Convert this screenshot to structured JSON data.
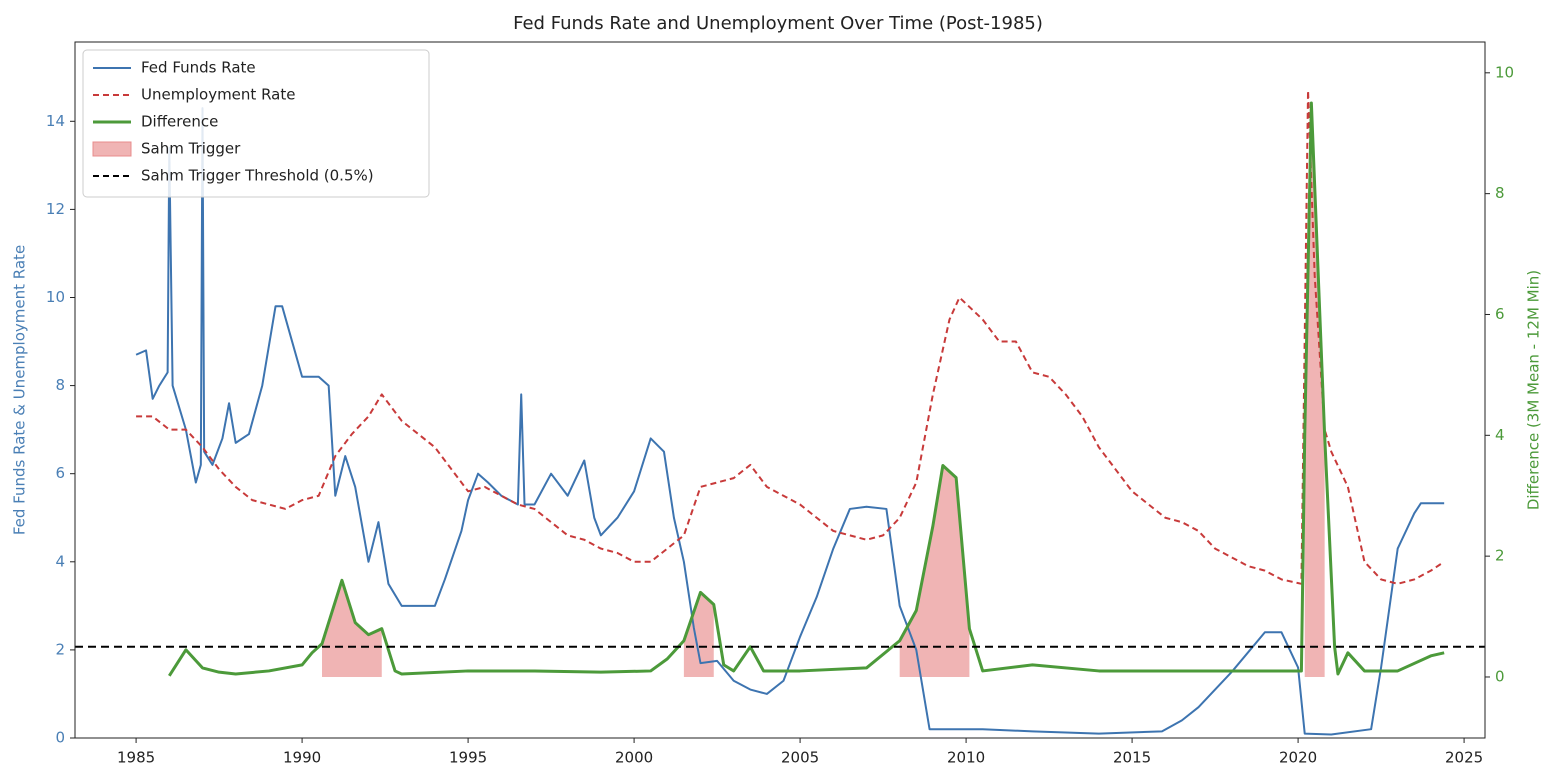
{
  "chart_data": {
    "type": "line",
    "title": "Fed Funds Rate and Unemployment Over Time (Post-1985)",
    "ylabel": "Fed Funds Rate & Unemployment Rate",
    "y2label": "Difference (3M Mean - 12M Min)",
    "xlim": [
      1983.16,
      2025.63
    ],
    "xticks": [
      1985,
      1990,
      1995,
      2000,
      2005,
      2010,
      2015,
      2020,
      2025
    ],
    "ylim": [
      0,
      15.8
    ],
    "yticks": [
      0,
      2,
      4,
      6,
      8,
      10,
      12,
      14
    ],
    "y2lim": [
      -1.01,
      10.51
    ],
    "y2ticks": [
      0,
      2,
      4,
      6,
      8,
      10
    ],
    "ylabel_color": "#4a7fb5",
    "y2label_color": "#4c9a3a",
    "legend": "upper left",
    "series": [
      {
        "name": "Fed Funds Rate",
        "color": "#3d74b0",
        "style": "solid",
        "width": 2,
        "axis": "y",
        "x": [
          1985.0,
          1985.3,
          1985.5,
          1985.7,
          1985.95,
          1986.0,
          1986.1,
          1986.5,
          1986.8,
          1986.95,
          1987.0,
          1987.05,
          1987.3,
          1987.6,
          1987.8,
          1988.0,
          1988.4,
          1988.8,
          1989.2,
          1989.4,
          1989.7,
          1990.0,
          1990.5,
          1990.8,
          1991.0,
          1991.3,
          1991.6,
          1992.0,
          1992.3,
          1992.6,
          1993.0,
          1993.5,
          1994.0,
          1994.3,
          1994.8,
          1995.0,
          1995.3,
          1995.6,
          1996.0,
          1996.5,
          1996.6,
          1996.7,
          1997.0,
          1997.5,
          1998.0,
          1998.5,
          1998.8,
          1999.0,
          1999.5,
          2000.0,
          2000.5,
          2000.9,
          2001.2,
          2001.5,
          2001.8,
          2002.0,
          2002.5,
          2003.0,
          2003.5,
          2004.0,
          2004.5,
          2005.0,
          2005.5,
          2006.0,
          2006.5,
          2007.0,
          2007.6,
          2008.0,
          2008.5,
          2008.9,
          2009.5,
          2010.5,
          2012.0,
          2014.0,
          2015.9,
          2016.5,
          2017.0,
          2018.0,
          2019.0,
          2019.5,
          2020.0,
          2020.2,
          2021.0,
          2022.2,
          2022.5,
          2023.0,
          2023.5,
          2023.7,
          2024.4
        ],
        "values": [
          8.7,
          8.8,
          7.7,
          8.0,
          8.3,
          13.4,
          8.0,
          7.0,
          5.8,
          6.2,
          14.3,
          6.5,
          6.2,
          6.8,
          7.6,
          6.7,
          6.9,
          8.0,
          9.8,
          9.8,
          9.0,
          8.2,
          8.2,
          8.0,
          5.5,
          6.4,
          5.7,
          4.0,
          4.9,
          3.5,
          3.0,
          3.0,
          3.0,
          3.6,
          4.7,
          5.4,
          6.0,
          5.8,
          5.5,
          5.3,
          7.8,
          5.3,
          5.3,
          6.0,
          5.5,
          6.3,
          5.0,
          4.6,
          5.0,
          5.6,
          6.8,
          6.5,
          5.0,
          4.0,
          2.5,
          1.7,
          1.75,
          1.3,
          1.1,
          1.0,
          1.3,
          2.3,
          3.2,
          4.3,
          5.2,
          5.25,
          5.2,
          3.0,
          2.0,
          0.2,
          0.2,
          0.2,
          0.15,
          0.1,
          0.15,
          0.4,
          0.7,
          1.5,
          2.4,
          2.4,
          1.6,
          0.1,
          0.08,
          0.2,
          1.6,
          4.3,
          5.1,
          5.33,
          5.33
        ]
      },
      {
        "name": "Unemployment Rate",
        "color": "#c83a3a",
        "style": "dashed",
        "width": 2,
        "axis": "y",
        "x": [
          1985.0,
          1985.5,
          1986.0,
          1986.5,
          1987.0,
          1987.5,
          1988.0,
          1988.5,
          1989.0,
          1989.5,
          1990.0,
          1990.5,
          1991.0,
          1991.5,
          1992.0,
          1992.4,
          1993.0,
          1993.5,
          1994.0,
          1994.5,
          1995.0,
          1995.5,
          1996.0,
          1996.5,
          1997.0,
          1997.5,
          1998.0,
          1998.5,
          1999.0,
          1999.5,
          2000.0,
          2000.5,
          2001.0,
          2001.5,
          2002.0,
          2002.5,
          2003.0,
          2003.5,
          2004.0,
          2004.5,
          2005.0,
          2005.5,
          2006.0,
          2006.5,
          2007.0,
          2007.5,
          2008.0,
          2008.5,
          2009.0,
          2009.5,
          2009.8,
          2010.5,
          2011.0,
          2011.5,
          2012.0,
          2012.5,
          2013.0,
          2013.5,
          2014.0,
          2014.5,
          2015.0,
          2015.5,
          2016.0,
          2016.5,
          2017.0,
          2017.5,
          2018.0,
          2018.5,
          2019.0,
          2019.5,
          2020.1,
          2020.3,
          2020.5,
          2020.8,
          2021.0,
          2021.5,
          2022.0,
          2022.5,
          2023.0,
          2023.5,
          2024.0,
          2024.4
        ],
        "values": [
          7.3,
          7.3,
          7.0,
          7.0,
          6.6,
          6.1,
          5.7,
          5.4,
          5.3,
          5.2,
          5.4,
          5.5,
          6.4,
          6.9,
          7.3,
          7.8,
          7.2,
          6.9,
          6.6,
          6.1,
          5.6,
          5.7,
          5.5,
          5.3,
          5.2,
          4.9,
          4.6,
          4.5,
          4.3,
          4.2,
          4.0,
          4.0,
          4.3,
          4.6,
          5.7,
          5.8,
          5.9,
          6.2,
          5.7,
          5.5,
          5.3,
          5.0,
          4.7,
          4.6,
          4.5,
          4.6,
          5.0,
          5.8,
          7.8,
          9.5,
          10.0,
          9.5,
          9.0,
          9.0,
          8.3,
          8.2,
          7.8,
          7.3,
          6.6,
          6.1,
          5.6,
          5.3,
          5.0,
          4.9,
          4.7,
          4.3,
          4.1,
          3.9,
          3.8,
          3.6,
          3.5,
          14.7,
          10.5,
          7.0,
          6.5,
          5.7,
          4.0,
          3.6,
          3.5,
          3.6,
          3.8,
          4.0
        ]
      },
      {
        "name": "Difference",
        "color": "#4c9a3a",
        "style": "solid",
        "width": 3,
        "axis": "y2",
        "x": [
          1986.0,
          1986.5,
          1987.0,
          1987.5,
          1988.0,
          1989.0,
          1990.0,
          1990.3,
          1990.6,
          1991.2,
          1991.6,
          1992.0,
          1992.4,
          1992.8,
          1993.0,
          1995.0,
          1997.0,
          1999.0,
          2000.5,
          2001.0,
          2001.5,
          2002.0,
          2002.4,
          2002.7,
          2003.0,
          2003.5,
          2003.9,
          2005.0,
          2007.0,
          2008.0,
          2008.5,
          2009.0,
          2009.3,
          2009.7,
          2010.1,
          2010.5,
          2012.0,
          2014.0,
          2016.0,
          2018.0,
          2020.1,
          2020.2,
          2020.4,
          2020.8,
          2021.1,
          2021.2,
          2021.5,
          2022.0,
          2023.0,
          2024.0,
          2024.4
        ],
        "values": [
          0.02,
          0.45,
          0.15,
          0.08,
          0.05,
          0.1,
          0.2,
          0.4,
          0.55,
          1.6,
          0.9,
          0.7,
          0.8,
          0.1,
          0.05,
          0.1,
          0.1,
          0.08,
          0.1,
          0.3,
          0.6,
          1.4,
          1.2,
          0.2,
          0.1,
          0.5,
          0.1,
          0.1,
          0.15,
          0.6,
          1.1,
          2.5,
          3.5,
          3.3,
          0.8,
          0.1,
          0.2,
          0.1,
          0.1,
          0.1,
          0.1,
          4.0,
          9.5,
          4.0,
          0.5,
          0.05,
          0.4,
          0.1,
          0.1,
          0.35,
          0.4
        ]
      }
    ],
    "fill": {
      "name": "Sahm Trigger",
      "color": "#e88c8c",
      "of": 2
    },
    "threshold": {
      "name": "Sahm Trigger Threshold (0.5%)",
      "value": 0.5,
      "axis": "y2",
      "color": "#000000"
    }
  }
}
